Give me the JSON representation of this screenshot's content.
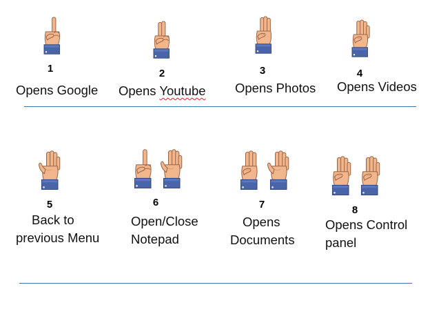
{
  "gestures": [
    {
      "number": "1",
      "label_lines": [
        "Opens Google"
      ]
    },
    {
      "number": "2",
      "label_prefix": "Opens ",
      "label_misspelled": "Youtube"
    },
    {
      "number": "3",
      "label_lines": [
        "Opens Photos"
      ]
    },
    {
      "number": "4",
      "label_lines": [
        "Opens Videos"
      ]
    },
    {
      "number": "5",
      "label_lines": [
        "Back to",
        "previous Menu"
      ]
    },
    {
      "number": "6",
      "label_lines": [
        "Open/Close",
        "Notepad"
      ]
    },
    {
      "number": "7",
      "label_lines": [
        "Opens",
        "Documents"
      ]
    },
    {
      "number": "8",
      "label_lines": [
        "Opens Control",
        "panel"
      ]
    }
  ],
  "hand_icons": {
    "1": [
      "hand-one-finger-icon"
    ],
    "2": [
      "hand-two-fingers-icon"
    ],
    "3": [
      "hand-three-fingers-icon"
    ],
    "4": [
      "hand-four-fingers-icon"
    ],
    "5": [
      "hand-five-fingers-icon"
    ],
    "6": [
      "hand-one-finger-icon",
      "hand-five-fingers-icon"
    ],
    "7": [
      "hand-three-fingers-icon",
      "hand-five-fingers-icon"
    ],
    "8": [
      "hand-four-fingers-icon",
      "hand-four-fingers-icon"
    ]
  },
  "colors": {
    "skin": "#f2b68d",
    "skin_shade": "#dd9a6e",
    "outline": "#9a6446",
    "cuff": "#4a64aa",
    "cuff_dark": "#2f447a",
    "divider": "#4472a8"
  }
}
